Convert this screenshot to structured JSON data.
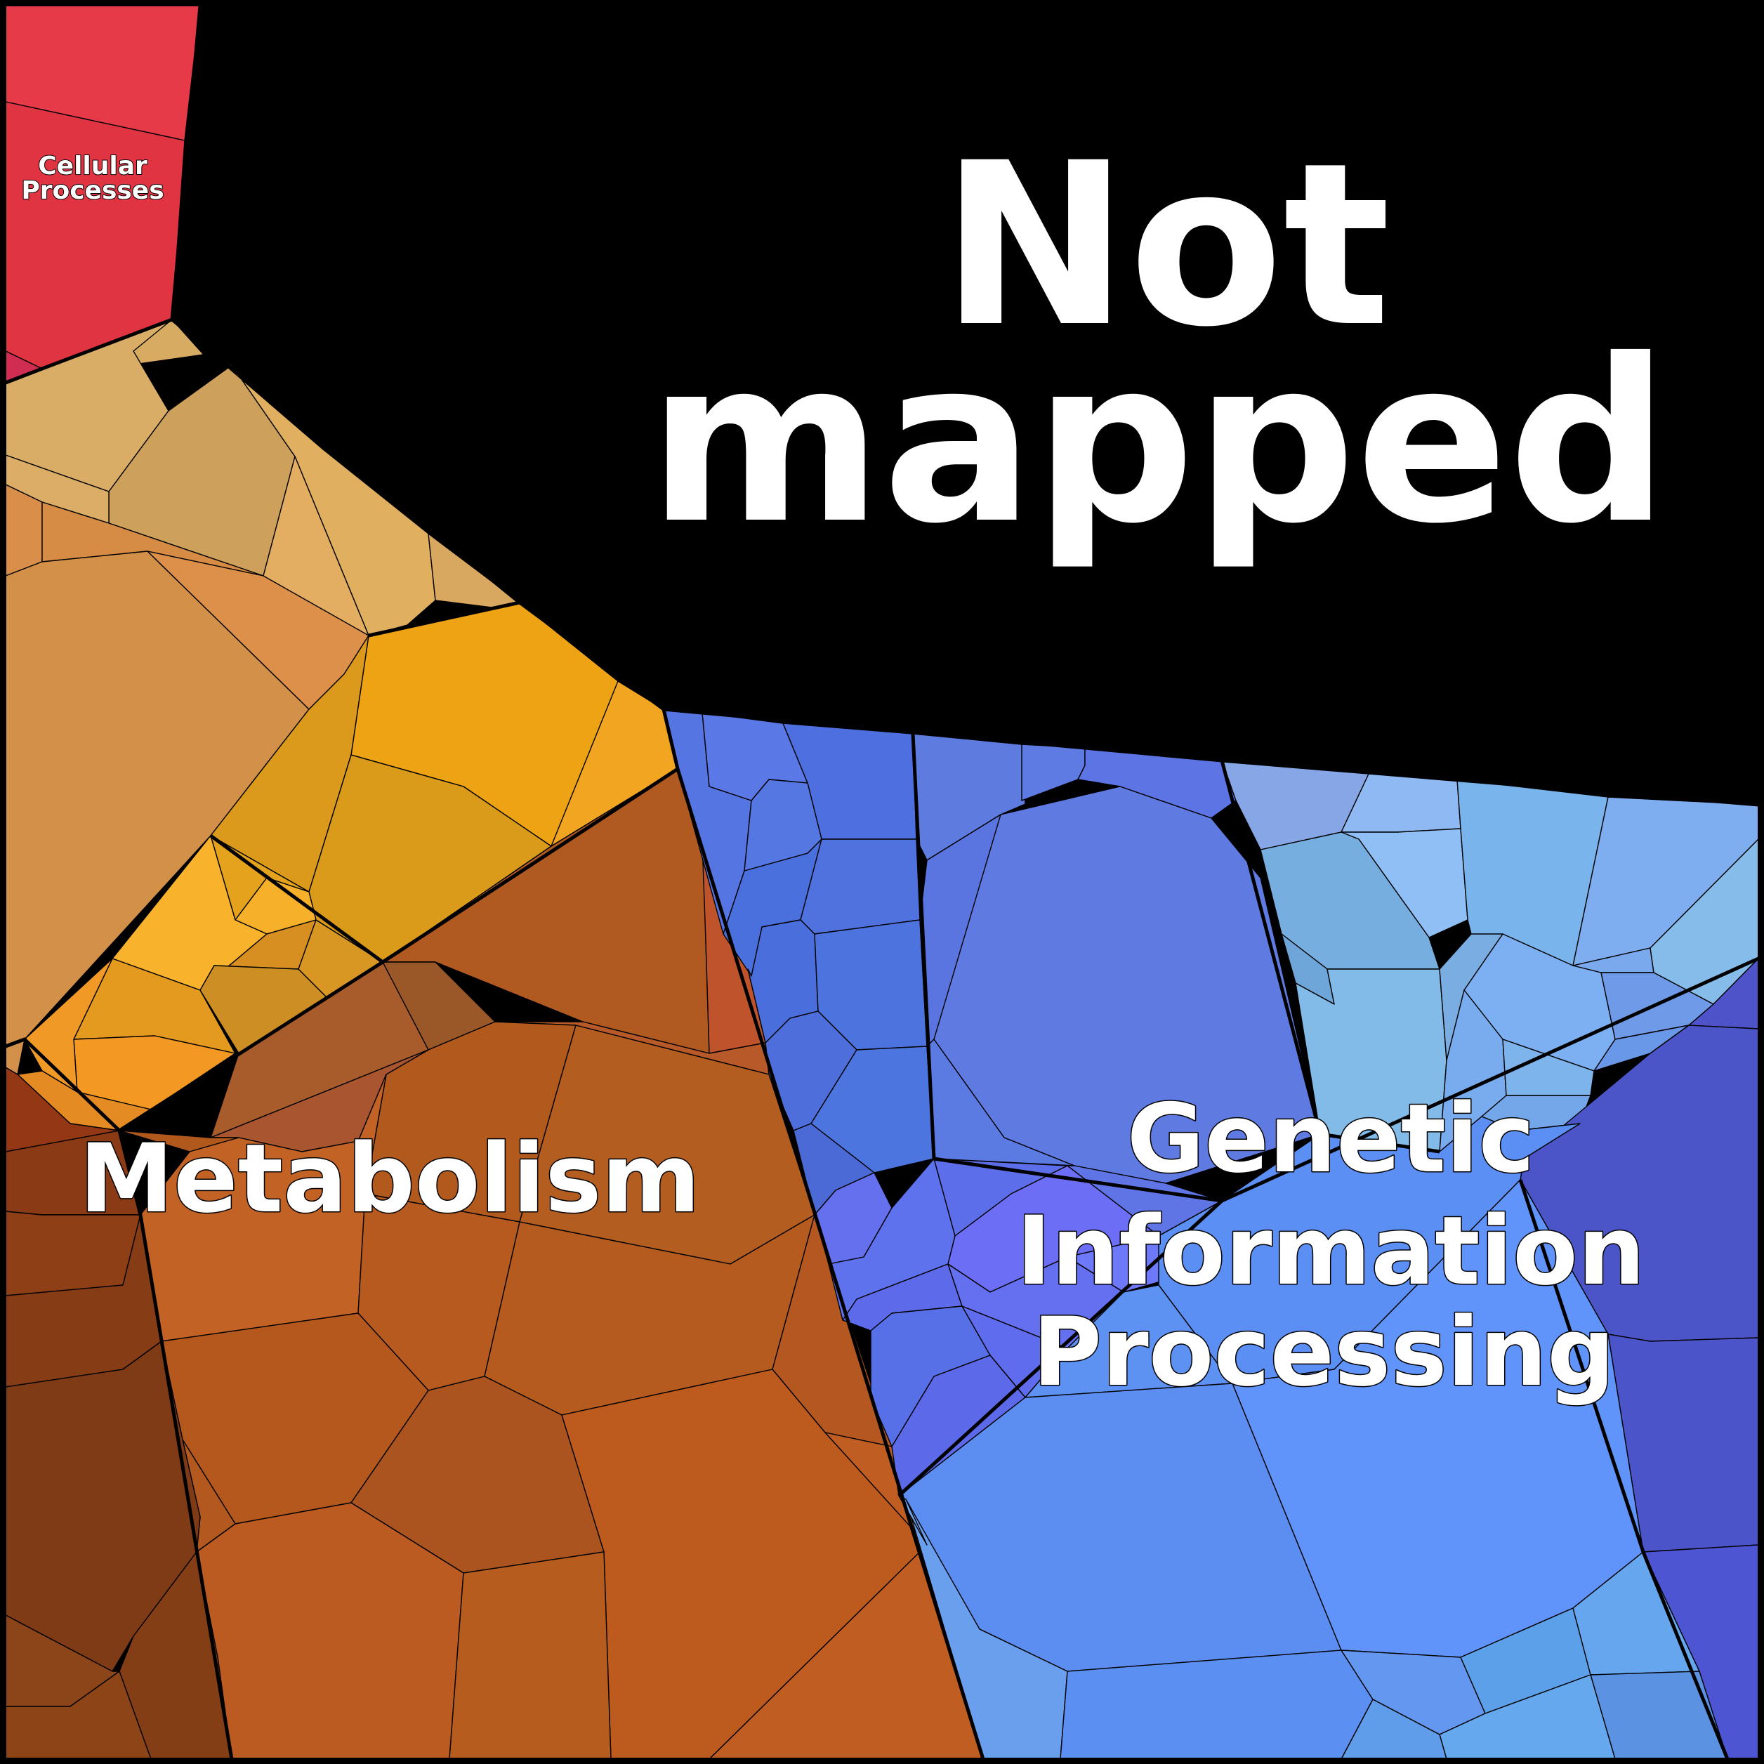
{
  "labels": {
    "not_mapped_line1": "Not",
    "not_mapped_line2": "mapped",
    "cellular_line1": "Cellular",
    "cellular_line2": "Processes",
    "metabolism": "Metabolism",
    "genetic_line1": "Genetic",
    "genetic_line2": "Information",
    "genetic_line3": "Processing"
  },
  "colors": {
    "not_mapped": "#565b60",
    "cellular_processes": "#e33a46",
    "metabolism_dark": "#8b3a12",
    "metabolism_main": "#b65a20",
    "metabolism_light": "#d38d48",
    "metabolism_yellow": "#e6a11c",
    "genetic_blue": "#5a77e3",
    "genetic_light": "#7fb2e8",
    "genetic_indigo": "#4a54c6",
    "genetic_sky": "#5f91f2",
    "border": "#000000"
  }
}
